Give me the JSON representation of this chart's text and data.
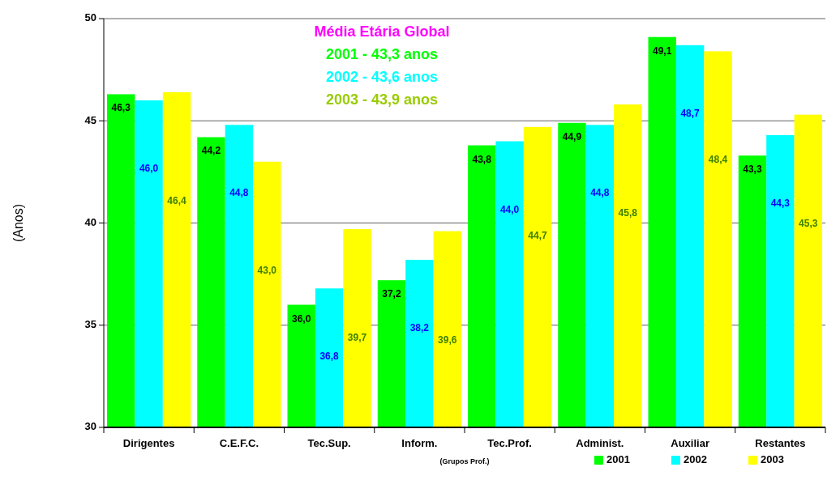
{
  "chart_data": {
    "type": "bar",
    "title": "Média Etária Global",
    "annotations": [
      "2001 - 43,3 anos",
      "2002 - 43,6 anos",
      "2003 - 43,9 anos"
    ],
    "xlabel": "(Grupos Prof.)",
    "ylabel": "(Anos)",
    "categories": [
      "Dirigentes",
      "C.E.F.C.",
      "Tec.Sup.",
      "Inform.",
      "Tec.Prof.",
      "Administ.",
      "Auxiliar",
      "Restantes"
    ],
    "series": [
      {
        "name": "2001",
        "color": "#00ff00",
        "values": [
          46.3,
          44.2,
          36.0,
          37.2,
          43.8,
          44.9,
          49.1,
          43.3
        ],
        "value_labels": [
          "46,3",
          "44,2",
          "36,0",
          "37,2",
          "43,8",
          "44,9",
          "49,1",
          "43,3"
        ]
      },
      {
        "name": "2002",
        "color": "#00ffff",
        "values": [
          46.0,
          44.8,
          36.8,
          38.2,
          44.0,
          44.8,
          48.7,
          44.3
        ],
        "value_labels": [
          "46,0",
          "44,8",
          "36,8",
          "38,2",
          "44,0",
          "44,8",
          "48,7",
          "44,3"
        ]
      },
      {
        "name": "2003",
        "color": "#ffff00",
        "values": [
          46.4,
          43.0,
          39.7,
          39.6,
          44.7,
          45.8,
          48.4,
          45.3
        ],
        "value_labels": [
          "46,4",
          "43,0",
          "39,7",
          "39,6",
          "44,7",
          "45,8",
          "48,4",
          "45,3"
        ]
      }
    ],
    "ylim": [
      30,
      50
    ],
    "yticks": [
      30,
      35,
      40,
      45,
      50
    ],
    "grid": "y",
    "legend": "bottom right"
  }
}
